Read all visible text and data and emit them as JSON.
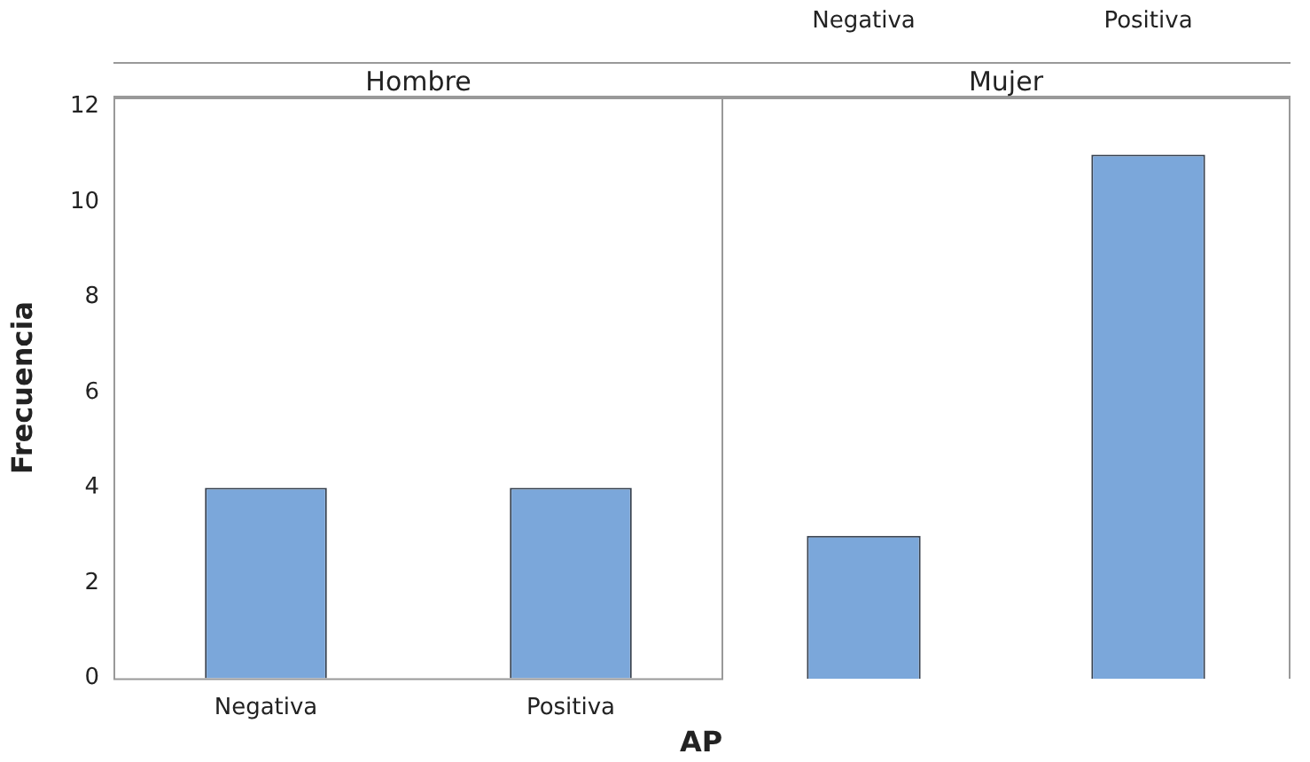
{
  "chart_data": [
    {
      "type": "bar",
      "title": "Hombre",
      "xlabel": "AP",
      "ylabel": "Frecuencia",
      "categories": [
        "Negativa",
        "Positiva"
      ],
      "values": [
        4,
        4
      ],
      "color": "#7ba7da",
      "ylim": [
        0,
        12.2
      ],
      "yticks": [
        0,
        2,
        4,
        6,
        8,
        10,
        12
      ],
      "grid": false,
      "legend": false
    },
    {
      "type": "bar",
      "title": "Mujer",
      "categories": [
        "Negativa",
        "Positiva"
      ],
      "values": [
        3,
        11
      ],
      "color": "#7ba7da",
      "ylim": [
        0,
        12.2
      ],
      "yticks": [
        0,
        2,
        4,
        6,
        8,
        10,
        12
      ],
      "grid": false,
      "legend": false,
      "tick_labels": "x"
    }
  ]
}
